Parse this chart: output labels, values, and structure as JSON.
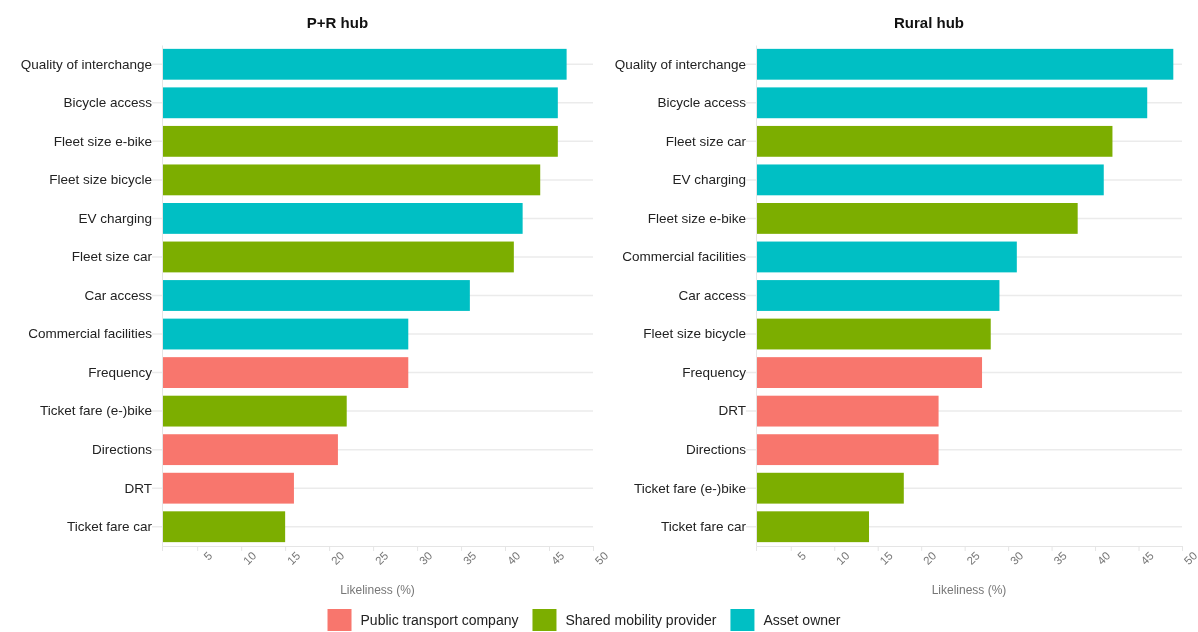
{
  "chart_data": [
    {
      "type": "bar",
      "orientation": "horizontal",
      "title": "P+R hub",
      "xlabel": "Likeliness (%)",
      "categories": [
        "Quality of interchange",
        "Bicycle access",
        "Fleet size e-bike",
        "Fleet size bicycle",
        "EV charging",
        "Fleet size car",
        "Car access",
        "Commercial facilities",
        "Frequency",
        "Ticket fare (e-)bike",
        "Directions",
        "DRT",
        "Ticket fare car"
      ],
      "series": [
        {
          "name": "Public transport company",
          "color": "#f8766d",
          "values": [
            null,
            null,
            null,
            null,
            null,
            null,
            null,
            null,
            29,
            null,
            21,
            16,
            null
          ]
        },
        {
          "name": "Shared mobility provider",
          "color": "#7cae00",
          "values": [
            null,
            null,
            46,
            44,
            null,
            41,
            null,
            null,
            null,
            22,
            null,
            null,
            15
          ]
        },
        {
          "name": "Asset owner",
          "color": "#00bfc4",
          "values": [
            47,
            46,
            null,
            null,
            42,
            null,
            36,
            29,
            null,
            null,
            null,
            null,
            null
          ]
        }
      ],
      "xlim": [
        1,
        50
      ],
      "xticks": [
        5,
        10,
        15,
        20,
        25,
        30,
        35,
        40,
        45,
        50
      ],
      "grid": "y",
      "legend": "bottom"
    },
    {
      "type": "bar",
      "orientation": "horizontal",
      "title": "Rural hub",
      "xlabel": "Likeliness (%)",
      "categories": [
        "Quality of interchange",
        "Bicycle access",
        "Fleet size car",
        "EV charging",
        "Fleet size e-bike",
        "Commercial facilities",
        "Car access",
        "Fleet size bicycle",
        "Frequency",
        "DRT",
        "Directions",
        "Ticket fare (e-)bike",
        "Ticket fare car"
      ],
      "series": [
        {
          "color": "#f8766d",
          "values": [
            null,
            null,
            null,
            null,
            null,
            null,
            null,
            null,
            27,
            22,
            22,
            null,
            null
          ]
        },
        {
          "color": "#7cae00",
          "values": [
            null,
            null,
            42,
            null,
            38,
            null,
            null,
            28,
            null,
            null,
            null,
            18,
            14
          ]
        },
        {
          "color": "#00bfc4",
          "values": [
            49,
            46,
            null,
            41,
            null,
            31,
            29,
            null,
            null,
            null,
            null,
            null,
            null
          ]
        }
      ],
      "xlim": [
        1,
        50
      ],
      "xticks": [
        5,
        10,
        15,
        20,
        25,
        30,
        35,
        40,
        45,
        50
      ],
      "grid": "y"
    }
  ]
}
